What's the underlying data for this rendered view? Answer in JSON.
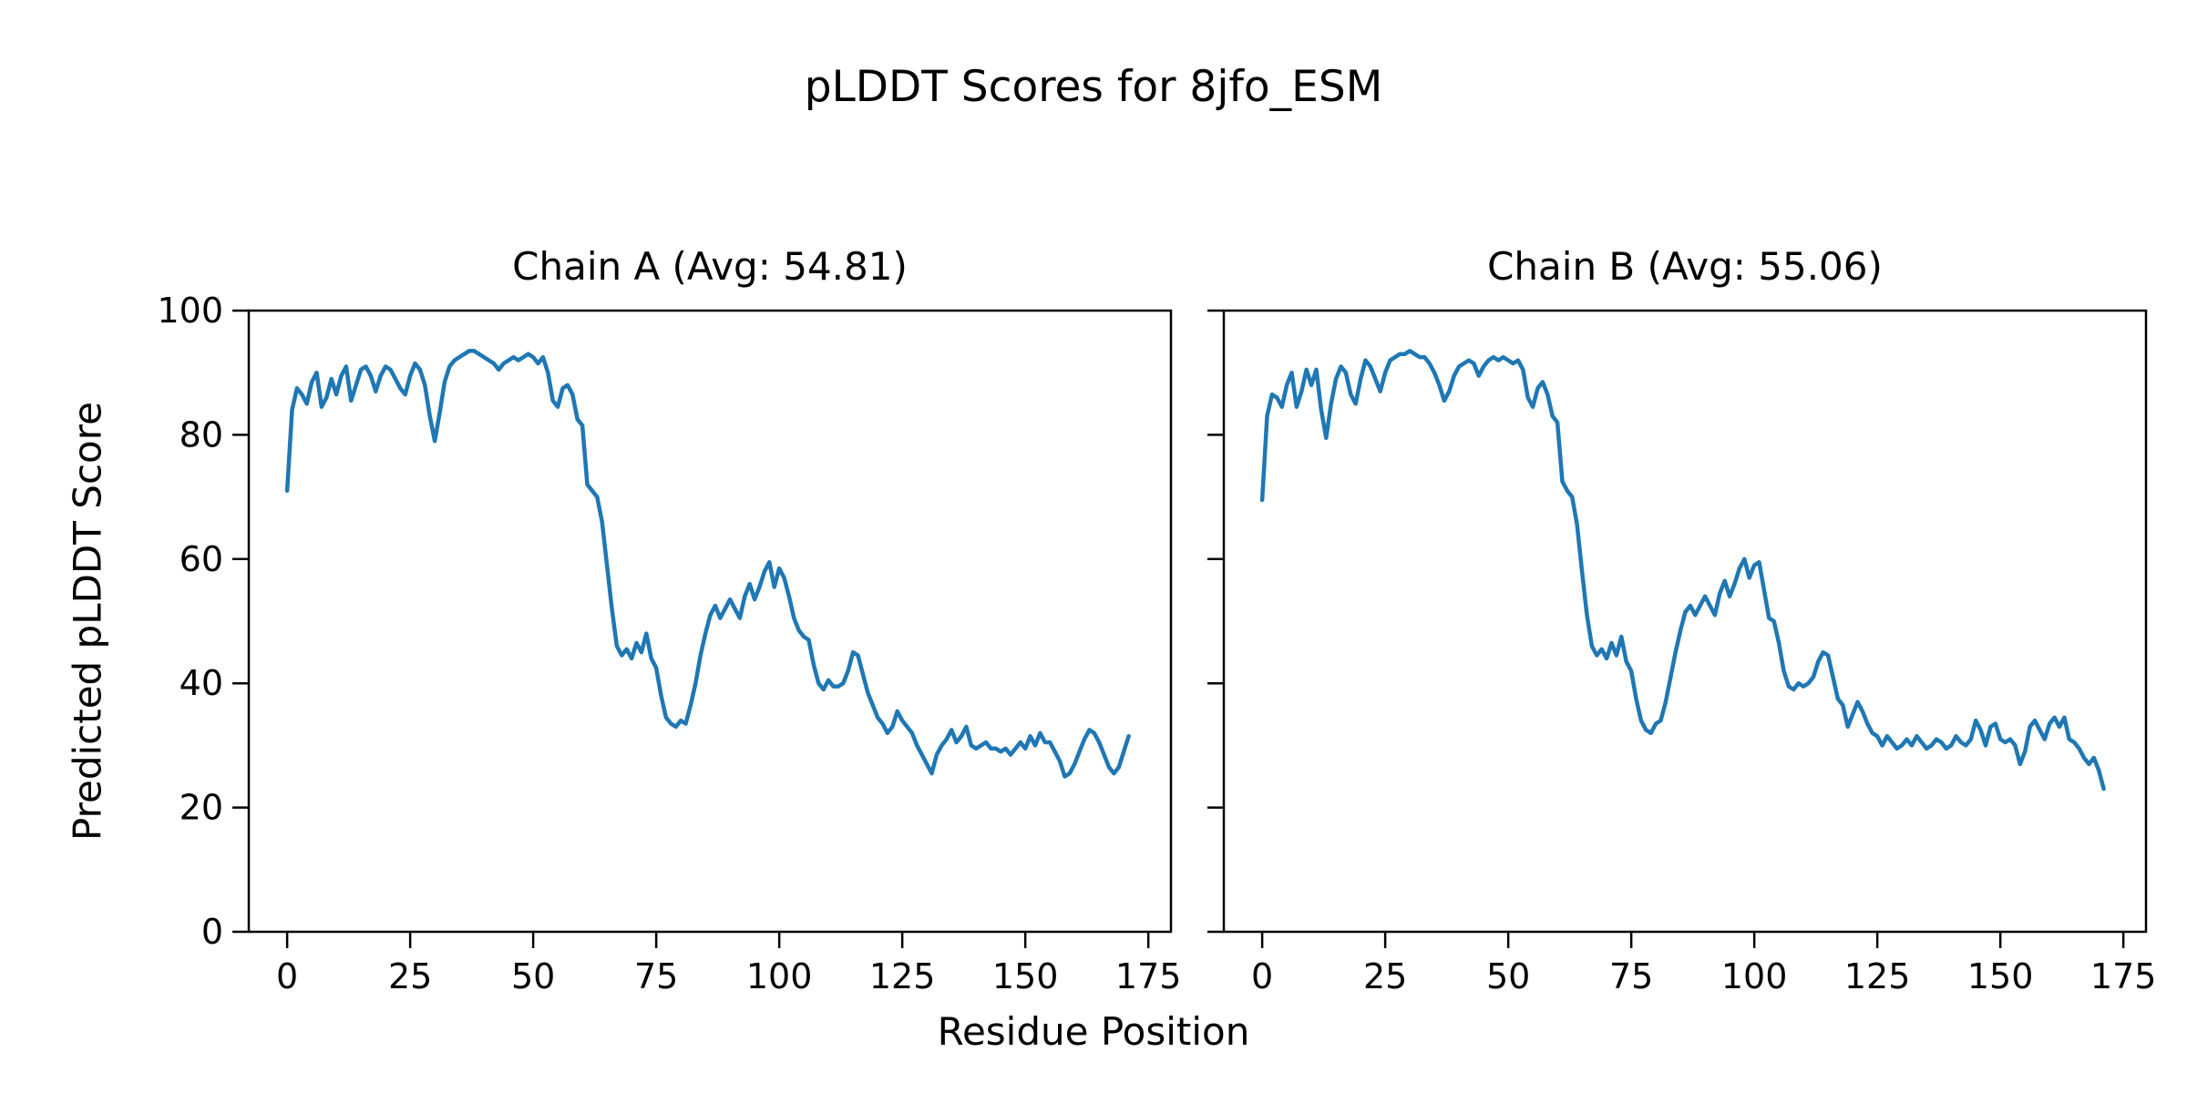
{
  "page": {
    "background": "#ffffff"
  },
  "chart_data": {
    "type": "line",
    "suptitle": "pLDDT Scores for 8jfo_ESM",
    "xlabel": "Residue Position",
    "ylabel": "Predicted pLDDT Score",
    "line_color": "#1f77b4",
    "axis_color": "#000000",
    "grid": false,
    "legend": "none",
    "xticks": [
      0,
      25,
      50,
      75,
      100,
      125,
      150,
      175
    ],
    "yticks": [
      0,
      20,
      40,
      60,
      80,
      100
    ],
    "xlim": [
      -7.8,
      179.6
    ],
    "ylim": [
      0,
      100
    ],
    "subplots": [
      {
        "title": "Chain A (Avg: 54.81)",
        "avg": 54.81,
        "x_start": 0,
        "x_step": 1,
        "values": [
          71,
          84,
          87.5,
          86.5,
          85,
          88.5,
          90,
          84.5,
          86,
          89,
          86.5,
          89.5,
          91,
          85.5,
          88,
          90.5,
          91,
          89.5,
          87,
          89.5,
          91,
          90.5,
          89,
          87.5,
          86.5,
          89.5,
          91.5,
          90.5,
          88,
          83,
          79,
          83.5,
          88.5,
          91,
          92,
          92.5,
          93,
          93.5,
          93.5,
          93,
          92.5,
          92,
          91.5,
          90.5,
          91.5,
          92,
          92.5,
          92,
          92.5,
          93,
          92.5,
          91.5,
          92.5,
          90,
          85.5,
          84.5,
          87.5,
          88,
          86.5,
          82.5,
          81.5,
          72,
          71,
          70,
          66,
          59,
          52,
          46,
          44.5,
          45.5,
          44,
          46.5,
          45,
          48,
          44,
          42.5,
          38,
          34.5,
          33.5,
          33,
          34,
          33.5,
          36.5,
          40,
          44.5,
          48,
          51,
          52.5,
          50.5,
          52,
          53.5,
          52,
          50.5,
          54,
          56,
          53.5,
          55.5,
          58,
          59.5,
          55.5,
          58.5,
          57,
          54,
          50.5,
          48.5,
          47.5,
          47,
          43,
          40,
          39,
          40.5,
          39.5,
          39.5,
          40,
          42,
          45,
          44.5,
          41.5,
          38.5,
          36.5,
          34.5,
          33.5,
          32,
          33,
          35.5,
          34,
          33,
          32,
          30,
          28.5,
          27,
          25.5,
          28.5,
          30,
          31,
          32.5,
          30.5,
          31.5,
          33,
          30,
          29.5,
          30,
          30.5,
          29.5,
          29.5,
          29,
          29.5,
          28.5,
          29.5,
          30.5,
          29.5,
          31.5,
          30,
          32,
          30.5,
          30.5,
          29,
          27.5,
          25,
          25.5,
          27,
          29,
          31,
          32.5,
          32,
          30.5,
          28.5,
          26.5,
          25.5,
          26.5,
          29,
          31.5
        ]
      },
      {
        "title": "Chain B (Avg: 55.06)",
        "avg": 55.06,
        "x_start": 0,
        "x_step": 1,
        "values": [
          69.5,
          83,
          86.5,
          86,
          84.5,
          88,
          90,
          84.5,
          87,
          90.5,
          88,
          90.5,
          84,
          79.5,
          85,
          89,
          91,
          90,
          86.5,
          85,
          89,
          92,
          91,
          89,
          87,
          90,
          92,
          92.5,
          93,
          93,
          93.5,
          93,
          92.5,
          92.5,
          91.5,
          90,
          88,
          85.5,
          87,
          89.5,
          91,
          91.5,
          92,
          91.5,
          89.5,
          91,
          92,
          92.5,
          92,
          92.5,
          92,
          91.5,
          92,
          90.5,
          86,
          84.5,
          87.5,
          88.5,
          86.5,
          83,
          82,
          72.5,
          71,
          70,
          65.5,
          58,
          51,
          46,
          44.5,
          45.5,
          44,
          46.5,
          44.5,
          47.5,
          43.5,
          42,
          37.5,
          34,
          32.5,
          32,
          33.5,
          34,
          37,
          41,
          45,
          48.5,
          51.5,
          52.5,
          51,
          52.5,
          54,
          52.5,
          51,
          54.5,
          56.5,
          54,
          56,
          58.5,
          60,
          57,
          59,
          59.5,
          55,
          50.5,
          50,
          46.5,
          42,
          39.5,
          39,
          40,
          39.5,
          40,
          41,
          43.5,
          45,
          44.5,
          41,
          37.5,
          36.5,
          33,
          35,
          37,
          35.5,
          33.5,
          32,
          31.5,
          30,
          31.5,
          30.5,
          29.5,
          30,
          31,
          30,
          31.5,
          30.5,
          29.5,
          30,
          31,
          30.5,
          29.5,
          30,
          31.5,
          30.5,
          30,
          31,
          34,
          32.5,
          30,
          33,
          33.5,
          31,
          30.5,
          31,
          30,
          27,
          29,
          33,
          34,
          32.5,
          31,
          33.5,
          34.5,
          33,
          34.5,
          31,
          30.5,
          29.5,
          28,
          27,
          28,
          26,
          23
        ]
      }
    ]
  }
}
